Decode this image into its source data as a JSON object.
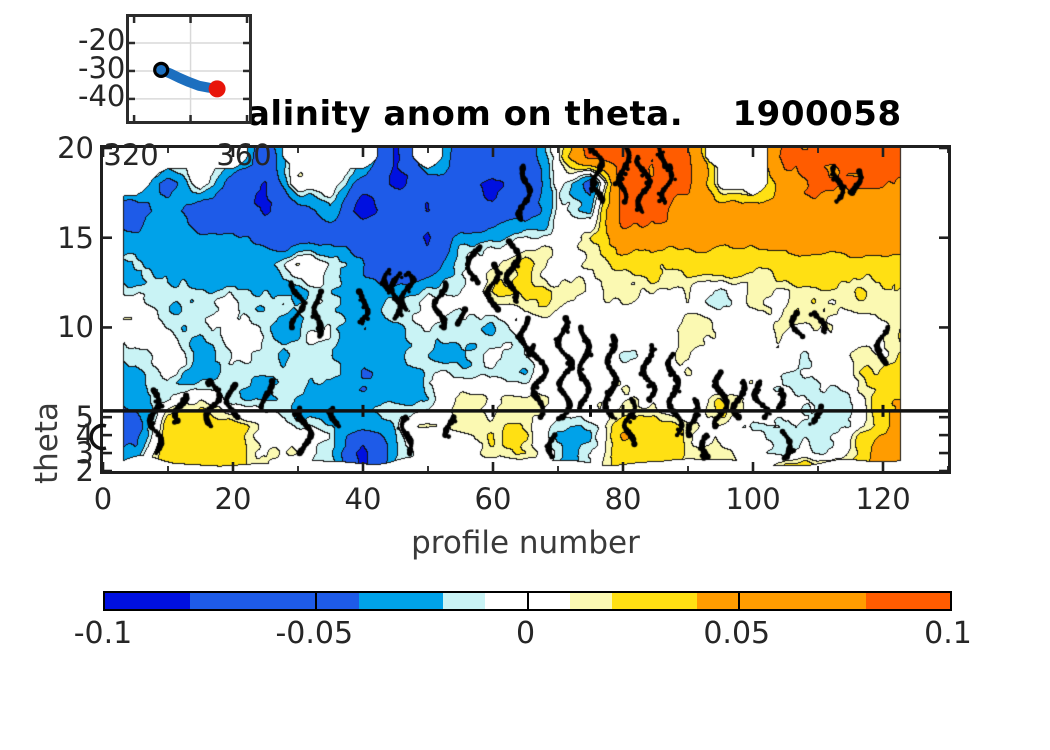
{
  "title": {
    "text": "Salinity anom on theta.    1900058"
  },
  "main_plot": {
    "xlabel": "profile number",
    "ylabel": "theta",
    "xticks": [
      0,
      20,
      40,
      60,
      80,
      100,
      120
    ],
    "yticks": [
      2,
      3,
      4,
      5,
      10,
      15,
      20
    ],
    "xlim": [
      0,
      130
    ],
    "ylim": [
      2,
      20
    ]
  },
  "inset_map": {
    "xticks": [
      320,
      360
    ],
    "yticks": [
      -20,
      -30,
      -40
    ],
    "xlim": [
      318.2,
      360.7
    ],
    "ylim": [
      -47.9,
      -10.7
    ],
    "trajectory_color": "#1c6fbf",
    "start_marker": "black-open-circle",
    "end_marker": "red-dot",
    "end_color": "#e8150a",
    "trajectory": [
      [
        329.6,
        -29.6
      ],
      [
        333.0,
        -31.0
      ],
      [
        336.0,
        -32.5
      ],
      [
        339.5,
        -34.0
      ],
      [
        343.0,
        -35.3
      ],
      [
        346.5,
        -36.0
      ],
      [
        349.4,
        -36.4
      ]
    ]
  },
  "colorbar": {
    "ticks": [
      -0.1,
      -0.05,
      0,
      0.05,
      0.1
    ],
    "tick_lines": [
      -0.05,
      0,
      0.05
    ]
  },
  "chart_data": {
    "type": "heatmap",
    "title": "Salinity anom on theta.    1900058",
    "xlabel": "profile number",
    "ylabel": "theta",
    "xlim": [
      0,
      130
    ],
    "ylim": [
      2,
      20
    ],
    "levels": [
      -0.1,
      -0.08,
      -0.04,
      -0.02,
      -0.01,
      0.01,
      0.02,
      0.04,
      0.08,
      0.1
    ],
    "palette": [
      "#0010e0",
      "#1e5be8",
      "#00a2e9",
      "#c9f3f5",
      "#ffffff",
      "#fbf9b2",
      "#ffe013",
      "#ff9c00",
      "#ff5c00"
    ],
    "marker_line_theta": 5.35,
    "marker_line_tick_profiles": [
      40,
      60,
      75,
      80,
      120
    ],
    "profiles": [
      5,
      10,
      15,
      20,
      25,
      30,
      35,
      40,
      45,
      50,
      55,
      60,
      65,
      70,
      75,
      80,
      85,
      90,
      95,
      100,
      105,
      110,
      115,
      120,
      123
    ],
    "thetas": [
      19.5,
      18,
      16.5,
      15,
      13.5,
      12,
      10.5,
      9,
      7.5,
      6,
      5,
      4,
      3
    ],
    "anomaly_grid": [
      [
        null,
        null,
        null,
        null,
        -0.06,
        null,
        null,
        null,
        -0.09,
        null,
        -0.06,
        -0.06,
        -0.06,
        0,
        0.09,
        0.09,
        0.09,
        0.09,
        null,
        null,
        0.09,
        0.09,
        0.09,
        0.09,
        0.09
      ],
      [
        null,
        -0.06,
        0,
        -0.06,
        -0.09,
        0,
        0,
        -0.06,
        -0.09,
        -0.06,
        -0.06,
        -0.09,
        -0.06,
        0,
        -0.06,
        0.09,
        0.09,
        0.09,
        0,
        null,
        0.06,
        0.09,
        0.09,
        0.09,
        0.06
      ],
      [
        -0.06,
        -0.03,
        -0.06,
        -0.06,
        -0.09,
        -0.06,
        -0.03,
        -0.09,
        -0.06,
        -0.09,
        -0.06,
        -0.06,
        -0.06,
        0,
        -0.03,
        0.09,
        0.09,
        0.06,
        0.06,
        0.06,
        0.06,
        0.06,
        0.06,
        0.06,
        0.06
      ],
      [
        -0.03,
        -0.03,
        -0.03,
        -0.03,
        -0.06,
        -0.06,
        -0.06,
        -0.06,
        -0.06,
        -0.09,
        -0.03,
        -0.03,
        -0.015,
        0,
        0.015,
        0.06,
        0.06,
        0.06,
        0.06,
        0.06,
        0.06,
        0.06,
        0.06,
        0.06,
        0.06
      ],
      [
        -0.015,
        -0.03,
        -0.03,
        -0.03,
        -0.03,
        0.015,
        -0.015,
        -0.03,
        -0.06,
        -0.06,
        -0.015,
        0,
        0.03,
        0,
        0.015,
        0.03,
        0.03,
        0.03,
        0.03,
        0.03,
        0.03,
        0.03,
        0.03,
        0.03,
        0.03
      ],
      [
        -0.015,
        -0.015,
        -0.015,
        -0.015,
        -0.015,
        -0.03,
        -0.015,
        -0.03,
        -0.03,
        -0.015,
        -0.015,
        0.015,
        0.03,
        0.015,
        0.015,
        0.015,
        0.015,
        0.015,
        -0.015,
        0.015,
        0.015,
        0.015,
        0.015,
        0.015,
        0.015
      ],
      [
        0,
        -0.015,
        -0.015,
        -0.015,
        -0.015,
        -0.03,
        -0.015,
        -0.03,
        -0.015,
        0,
        -0.015,
        -0.015,
        0,
        0,
        0,
        0,
        0,
        0.015,
        0,
        0,
        0.015,
        0.015,
        0,
        0.015,
        0.015
      ],
      [
        -0.015,
        0,
        -0.03,
        -0.015,
        -0.015,
        -0.015,
        -0.015,
        -0.03,
        -0.03,
        -0.015,
        -0.015,
        -0.015,
        0,
        0,
        0,
        0,
        0,
        0.015,
        0,
        0,
        0,
        0,
        0,
        0.015,
        0.03
      ],
      [
        -0.03,
        0,
        -0.03,
        -0.015,
        -0.015,
        -0.015,
        -0.015,
        -0.03,
        -0.03,
        -0.015,
        -0.015,
        -0.015,
        -0.015,
        0,
        0,
        0,
        0,
        0.015,
        0,
        0,
        0,
        0,
        0,
        0.03,
        0.03
      ],
      [
        -0.03,
        -0.015,
        0,
        -0.015,
        -0.015,
        -0.015,
        -0.03,
        -0.03,
        -0.03,
        -0.015,
        0.015,
        0.015,
        0.015,
        0,
        0,
        0,
        0.015,
        0,
        0.015,
        0,
        0,
        -0.015,
        -0.015,
        0.03,
        0.03
      ],
      [
        -0.06,
        0.03,
        0.03,
        0.03,
        0.015,
        -0.015,
        -0.015,
        -0.03,
        -0.015,
        0.015,
        0.015,
        0.015,
        0.015,
        -0.015,
        -0.015,
        0.03,
        0.03,
        0.015,
        0.015,
        -0.015,
        -0.015,
        -0.015,
        -0.015,
        0.03,
        0.06
      ],
      [
        -0.03,
        0.03,
        0.03,
        0.03,
        0.015,
        0.015,
        -0.015,
        -0.09,
        -0.015,
        -0.015,
        0,
        0.015,
        0.015,
        -0.015,
        -0.015,
        0.03,
        0.03,
        0.015,
        0.015,
        0,
        -0.015,
        -0.015,
        0.015,
        0.06,
        0.06
      ],
      [
        -0.015,
        0.03,
        0.03,
        0.015,
        0.015,
        -0.015,
        -0.015,
        -0.09,
        -0.015,
        0,
        0,
        0,
        -0.015,
        -0.015,
        -0.015,
        0.03,
        0.03,
        0.015,
        0.015,
        0,
        0.06,
        0.06,
        0.06,
        0.06,
        0.03
      ]
    ],
    "zero_contour_chains": [
      [
        8,
        3,
        6.5
      ],
      [
        12,
        4.8,
        6.2
      ],
      [
        17,
        4.5,
        7
      ],
      [
        20,
        5,
        6.8
      ],
      [
        25,
        5.5,
        7
      ],
      [
        30,
        10,
        12.5
      ],
      [
        31,
        3,
        5.5
      ],
      [
        33,
        9.5,
        12
      ],
      [
        36,
        4.5,
        5.5
      ],
      [
        40,
        10.3,
        12
      ],
      [
        44,
        12,
        13.2
      ],
      [
        45,
        10.5,
        13
      ],
      [
        46.5,
        11,
        13
      ],
      [
        47,
        3,
        5
      ],
      [
        52,
        10,
        12.5
      ],
      [
        53,
        4,
        5
      ],
      [
        55,
        10.2,
        11
      ],
      [
        57,
        12.5,
        14.5
      ],
      [
        60,
        11,
        13.5
      ],
      [
        63,
        11.5,
        14.8
      ],
      [
        65,
        8.5,
        10.5
      ],
      [
        65,
        16,
        19
      ],
      [
        67,
        5,
        9
      ],
      [
        69,
        2.8,
        4
      ],
      [
        71,
        5,
        10.5
      ],
      [
        74,
        5.5,
        10
      ],
      [
        76,
        17,
        20
      ],
      [
        78,
        5,
        9.5
      ],
      [
        80,
        17,
        20
      ],
      [
        81,
        3.5,
        6
      ],
      [
        83,
        16.5,
        19.5
      ],
      [
        84,
        6,
        9
      ],
      [
        86,
        19,
        20
      ],
      [
        87,
        17,
        19
      ],
      [
        88,
        4,
        8.5
      ],
      [
        91,
        4,
        6
      ],
      [
        93,
        2.8,
        4
      ],
      [
        95,
        4.5,
        7.5
      ],
      [
        98,
        5,
        7
      ],
      [
        101,
        5,
        7
      ],
      [
        104,
        5.5,
        6.5
      ],
      [
        105,
        2.8,
        4.2
      ],
      [
        107,
        9.5,
        10.8
      ],
      [
        110,
        4.7,
        5.6
      ],
      [
        110,
        9.8,
        10.8
      ],
      [
        113,
        17,
        19
      ],
      [
        116,
        17.5,
        18.7
      ],
      [
        120,
        8,
        10
      ]
    ]
  }
}
